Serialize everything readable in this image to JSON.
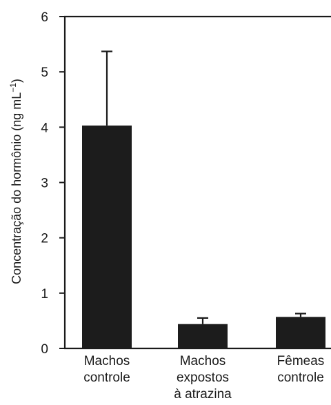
{
  "chart_data": {
    "type": "bar",
    "categories": [
      [
        "Machos",
        "controle"
      ],
      [
        "Machos",
        "expostos",
        "à atrazina"
      ],
      [
        "Fêmeas",
        "controle"
      ]
    ],
    "values": [
      4.03,
      0.44,
      0.57
    ],
    "error_upper": [
      5.37,
      0.55,
      0.63
    ],
    "bar_color": "#1c1c1c",
    "ylabel_text": "Concentração do hormônio (ng mL",
    "ylabel_sup": "−1",
    "ylabel_close": ")",
    "ylim": [
      0,
      6
    ],
    "yticks": [
      0,
      1,
      2,
      3,
      4,
      5,
      6
    ],
    "ytick_labels": [
      "0",
      "1",
      "2",
      "3",
      "4",
      "5",
      "6"
    ],
    "grid": false
  }
}
